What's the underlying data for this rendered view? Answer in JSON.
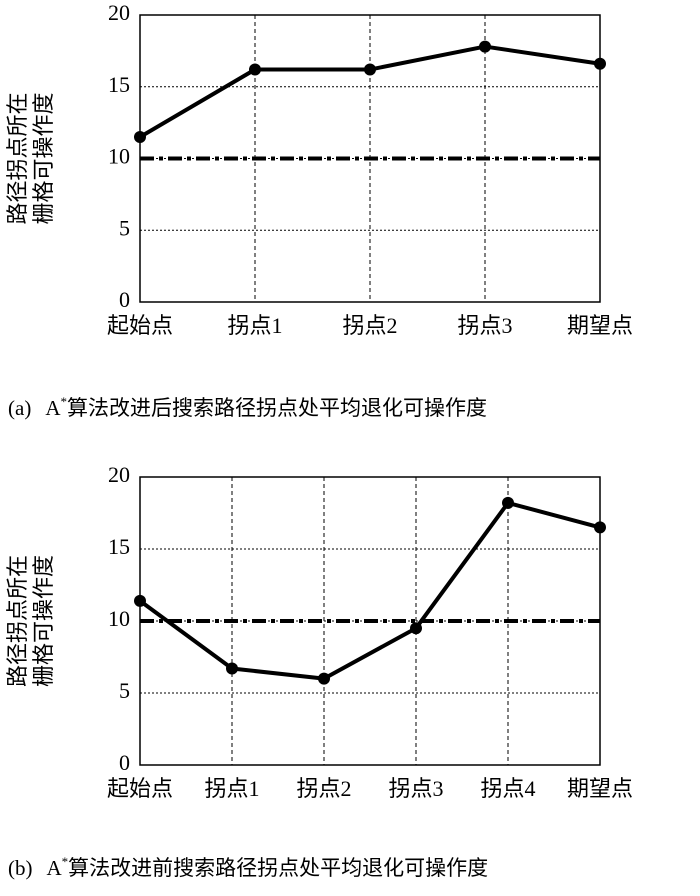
{
  "chart_data": [
    {
      "type": "line",
      "categories": [
        "起始点",
        "拐点1",
        "拐点2",
        "拐点3",
        "期望点"
      ],
      "values": [
        11.5,
        16.2,
        16.2,
        17.8,
        16.6
      ],
      "color": "#000000",
      "threshold": 10,
      "ylim": [
        0,
        20
      ],
      "yticks": [
        0,
        5,
        10,
        15,
        20
      ],
      "grid": true,
      "y_label": [
        "路径拐点所在",
        "栅格可操作度"
      ],
      "caption": {
        "label": "(a)",
        "prefix": "A",
        "superscript": "*",
        "text": "算法改进后搜索路径拐点处平均退化可操作度"
      }
    },
    {
      "type": "line",
      "categories": [
        "起始点",
        "拐点1",
        "拐点2",
        "拐点3",
        "拐点4",
        "期望点"
      ],
      "values": [
        11.4,
        6.7,
        6.0,
        9.5,
        18.2,
        16.5
      ],
      "color": "#000000",
      "threshold": 10,
      "ylim": [
        0,
        20
      ],
      "yticks": [
        0,
        5,
        10,
        15,
        20
      ],
      "grid": true,
      "y_label": [
        "路径拐点所在",
        "栅格可操作度"
      ],
      "caption": {
        "label": "(b)",
        "prefix": "A",
        "superscript": "*",
        "text": "算法改进前搜索路径拐点处平均退化可操作度"
      }
    }
  ]
}
